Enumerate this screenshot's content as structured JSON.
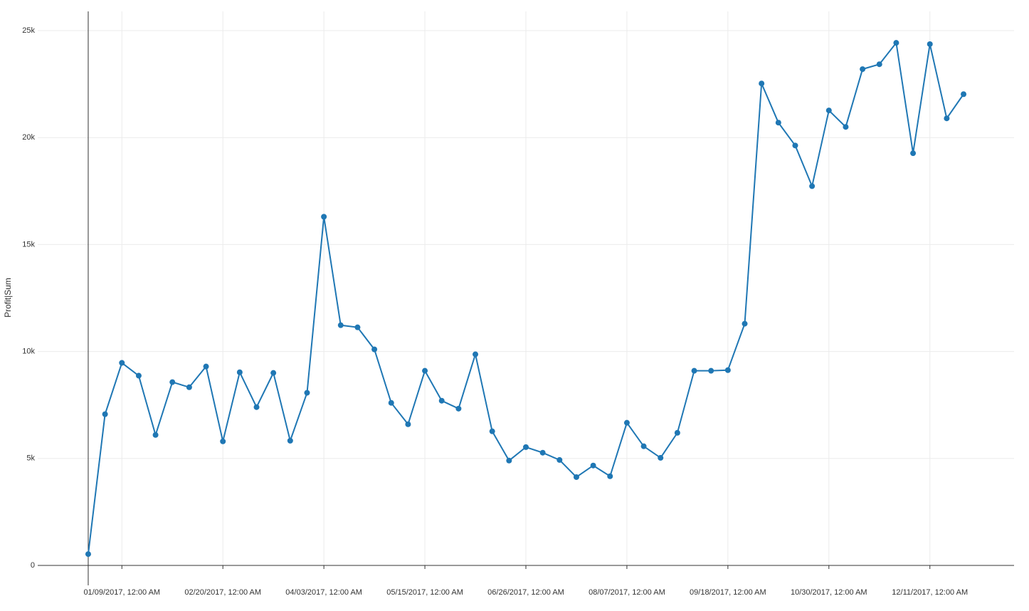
{
  "chart_data": {
    "type": "line",
    "y_label": "Profit|Sum",
    "x": [
      "2016-12-26",
      "2017-01-02",
      "2017-01-09",
      "2017-01-16",
      "2017-01-23",
      "2017-01-30",
      "2017-02-06",
      "2017-02-13",
      "2017-02-20",
      "2017-02-27",
      "2017-03-06",
      "2017-03-13",
      "2017-03-20",
      "2017-03-27",
      "2017-04-03",
      "2017-04-10",
      "2017-04-17",
      "2017-04-24",
      "2017-05-01",
      "2017-05-08",
      "2017-05-15",
      "2017-05-22",
      "2017-05-29",
      "2017-06-05",
      "2017-06-12",
      "2017-06-19",
      "2017-06-26",
      "2017-07-03",
      "2017-07-10",
      "2017-07-17",
      "2017-07-24",
      "2017-07-31",
      "2017-08-07",
      "2017-08-14",
      "2017-08-21",
      "2017-08-28",
      "2017-09-04",
      "2017-09-11",
      "2017-09-18",
      "2017-09-25",
      "2017-10-02",
      "2017-10-09",
      "2017-10-16",
      "2017-10-23",
      "2017-10-30",
      "2017-11-06",
      "2017-11-13",
      "2017-11-20",
      "2017-11-27",
      "2017-12-04",
      "2017-12-11",
      "2017-12-18",
      "2017-12-25"
    ],
    "series": [
      {
        "name": "Profit",
        "color": "#1f77b4",
        "values": [
          530,
          7070,
          9470,
          8870,
          6100,
          8570,
          8330,
          9300,
          5800,
          9030,
          7400,
          9000,
          5830,
          8070,
          16300,
          11230,
          11130,
          10100,
          7600,
          6600,
          9100,
          7700,
          7330,
          9870,
          6270,
          4900,
          5530,
          5270,
          4930,
          4130,
          4670,
          4170,
          6670,
          5570,
          5030,
          6200,
          9100,
          9100,
          9130,
          11300,
          22530,
          20700,
          19630,
          17730,
          21270,
          20500,
          23200,
          23430,
          24430,
          19270,
          24370,
          20900,
          22030
        ]
      }
    ],
    "xlim": [
      "2016-12-05",
      "2018-01-15"
    ],
    "xticks": [
      {
        "value": "2017-01-09",
        "label": "01/09/2017, 12:00 AM"
      },
      {
        "value": "2017-02-20",
        "label": "02/20/2017, 12:00 AM"
      },
      {
        "value": "2017-04-03",
        "label": "04/03/2017, 12:00 AM"
      },
      {
        "value": "2017-05-15",
        "label": "05/15/2017, 12:00 AM"
      },
      {
        "value": "2017-06-26",
        "label": "06/26/2017, 12:00 AM"
      },
      {
        "value": "2017-08-07",
        "label": "08/07/2017, 12:00 AM"
      },
      {
        "value": "2017-09-18",
        "label": "09/18/2017, 12:00 AM"
      },
      {
        "value": "2017-10-30",
        "label": "10/30/2017, 12:00 AM"
      },
      {
        "value": "2017-12-11",
        "label": "12/11/2017, 12:00 AM"
      }
    ],
    "ylim": [
      0,
      25900
    ],
    "yticks": [
      0,
      {
        "value": 5000,
        "label": "5k"
      },
      {
        "value": 10000,
        "label": "10k"
      },
      {
        "value": 15000,
        "label": "15k"
      },
      {
        "value": 20000,
        "label": "20k"
      },
      {
        "value": 25000,
        "label": "25k"
      }
    ],
    "grid": true
  }
}
